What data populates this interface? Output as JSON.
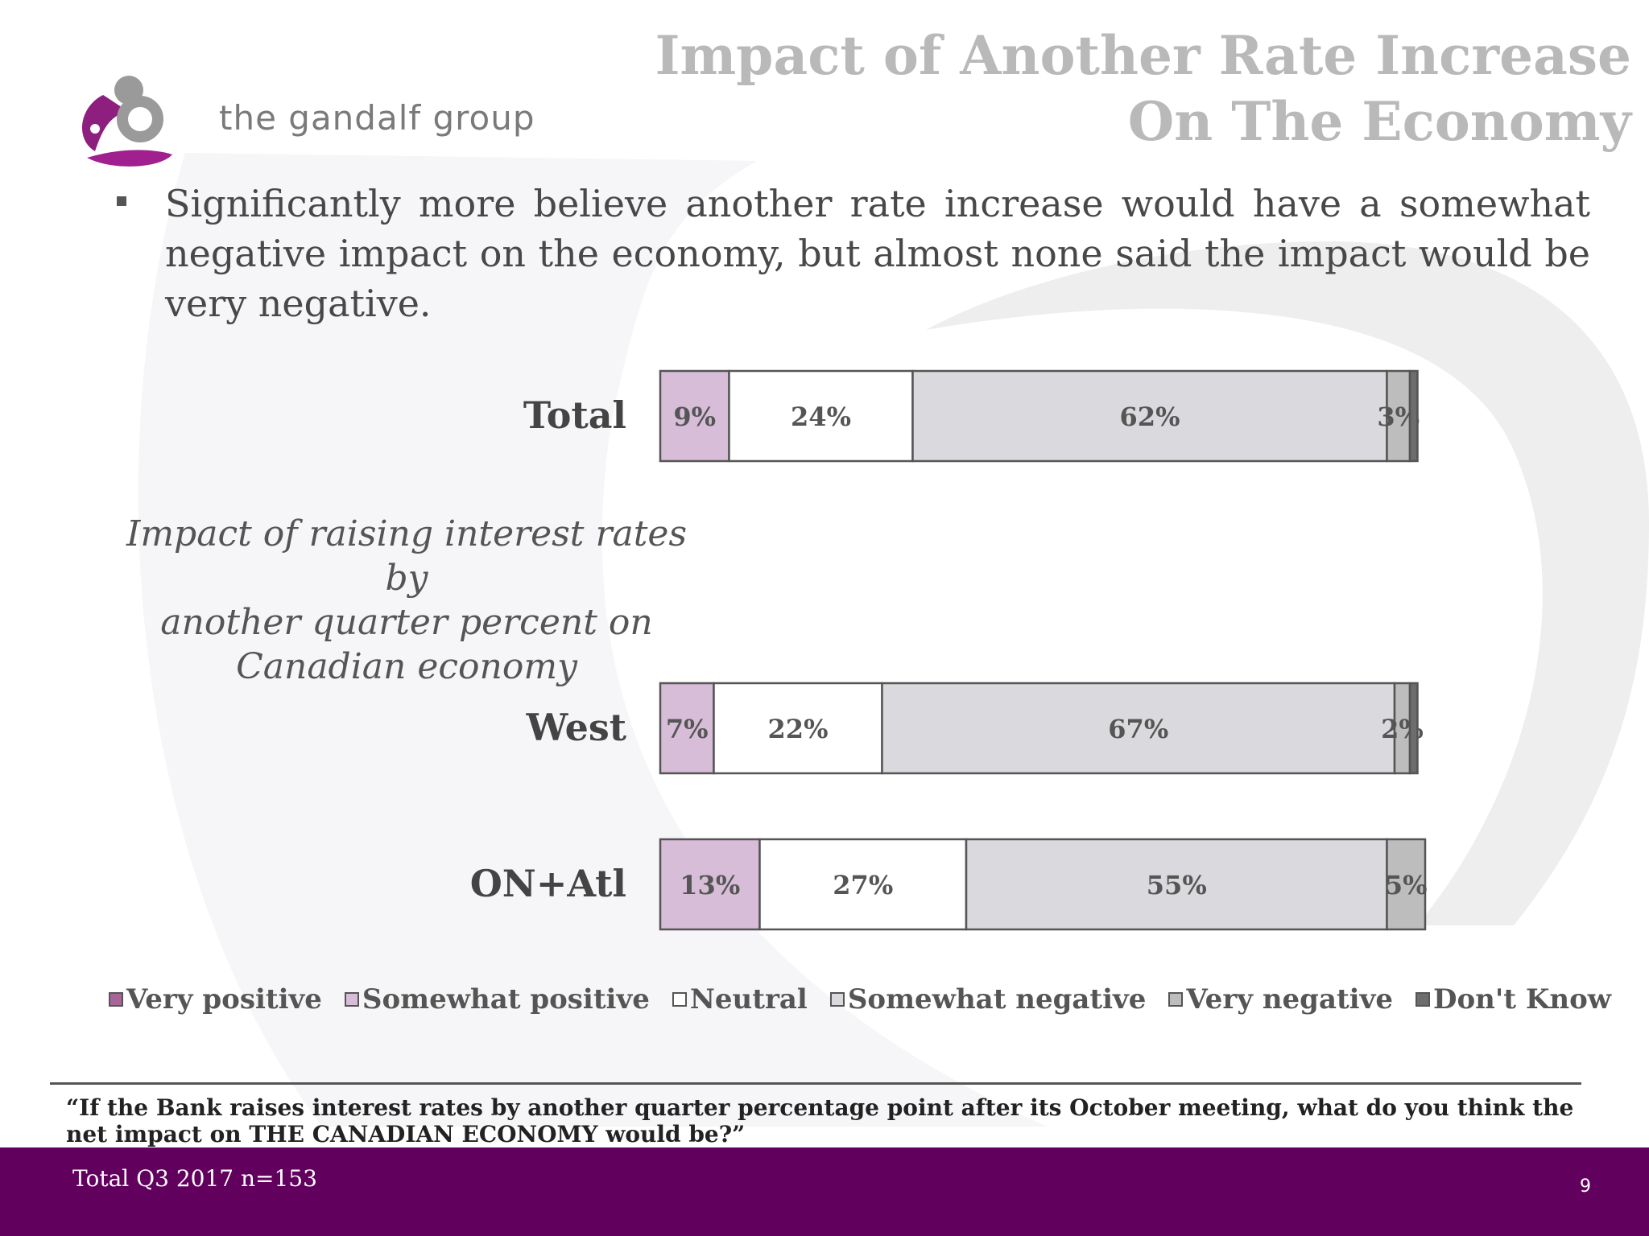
{
  "brand": {
    "logo_text": "the gandalf group"
  },
  "title_lines": [
    "Impact of Another Rate Increase",
    "On The Economy"
  ],
  "bullet": "Significantly more believe another rate increase would have a somewhat negative impact on the economy, but almost none said the impact would be very negative.",
  "chart_subtitle_lines": [
    "Impact of raising interest rates by",
    "another quarter percent on",
    "Canadian economy"
  ],
  "chart_data": {
    "type": "bar",
    "orientation": "horizontal",
    "stacked": true,
    "categories": [
      "Total",
      "West",
      "ON+Atl"
    ],
    "series": [
      {
        "name": "Very positive",
        "values": [
          0,
          0,
          0
        ],
        "color": "#a8659a"
      },
      {
        "name": "Somewhat positive",
        "values": [
          9,
          7,
          13
        ],
        "color": "#d7bdd8"
      },
      {
        "name": "Neutral",
        "values": [
          24,
          22,
          27
        ],
        "color": "#ffffff"
      },
      {
        "name": "Somewhat negative",
        "values": [
          62,
          67,
          55
        ],
        "color": "#dad9dd"
      },
      {
        "name": "Very negative",
        "values": [
          3,
          2,
          5
        ],
        "color": "#bdbdbd"
      },
      {
        "name": "Don't Know",
        "values": [
          1,
          1,
          0
        ],
        "color": "#6d6d6d"
      }
    ],
    "data_labels": [
      [
        "",
        "9%",
        "24%",
        "62%",
        "3%",
        ""
      ],
      [
        "",
        "7%",
        "22%",
        "67%",
        "2%",
        ""
      ],
      [
        "",
        "13%",
        "27%",
        "55%",
        "5%",
        ""
      ]
    ],
    "legend_position": "bottom",
    "grid": false,
    "title": "",
    "xlabel": "",
    "ylabel": ""
  },
  "question": "“If the Bank raises interest rates by another quarter percentage point after its October meeting, what do you think the net impact on THE CANADIAN ECONOMY would be?”",
  "footer_note": "Total Q3 2017 n=153",
  "page_number": "9",
  "colors": {
    "footer": "#62005e",
    "brand_purple": "#8e1f7e",
    "title_gray": "#b9b9b9"
  }
}
